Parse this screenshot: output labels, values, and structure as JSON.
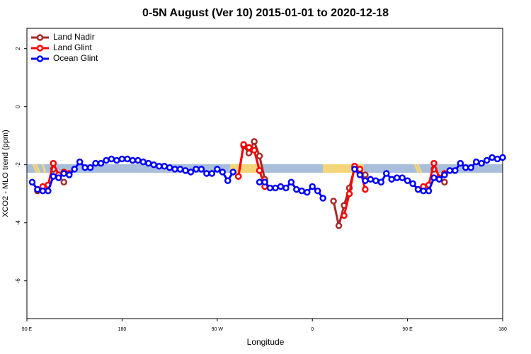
{
  "chart_data": {
    "type": "line",
    "title": "0-5N August (Ver 10)   2015-01-01 to 2020-12-18",
    "x_label": "Longitude",
    "y_label": "XCO2 - MLO trend (ppm)",
    "xlim": [
      90,
      540
    ],
    "ylim": [
      -7.3,
      2.7
    ],
    "xticks": [
      {
        "value": 90,
        "label": "90 E"
      },
      {
        "value": 180,
        "label": "180"
      },
      {
        "value": 270,
        "label": "90 W"
      },
      {
        "value": 360,
        "label": "0"
      },
      {
        "value": 450,
        "label": "90 E"
      },
      {
        "value": 540,
        "label": "180"
      }
    ],
    "yticks": [
      2,
      0,
      -2,
      -4,
      -6
    ],
    "legend": "top-left",
    "x": [
      95,
      100,
      105,
      110,
      115,
      120,
      125,
      130,
      135,
      140,
      145,
      150,
      155,
      160,
      165,
      170,
      175,
      180,
      185,
      190,
      195,
      200,
      205,
      210,
      215,
      220,
      225,
      230,
      235,
      240,
      245,
      250,
      255,
      260,
      265,
      270,
      275,
      280,
      285,
      290,
      295,
      300,
      305,
      310,
      315,
      320,
      325,
      330,
      335,
      340,
      345,
      350,
      355,
      360,
      365,
      370,
      375,
      380,
      385,
      390,
      395,
      400,
      405,
      410,
      415,
      420,
      425,
      430,
      435,
      440,
      445,
      450,
      455,
      460,
      465,
      470,
      475,
      480,
      485,
      490,
      495,
      500,
      505,
      510,
      515,
      520,
      525,
      530,
      535,
      540
    ],
    "series": [
      {
        "name": "Land Nadir",
        "color": "#a52a2a",
        "values": [
          null,
          -2.9,
          null,
          null,
          -2.15,
          null,
          -2.6,
          null,
          null,
          null,
          null,
          null,
          null,
          null,
          null,
          null,
          null,
          null,
          null,
          null,
          null,
          null,
          null,
          null,
          null,
          null,
          null,
          null,
          null,
          null,
          null,
          null,
          null,
          null,
          null,
          null,
          null,
          null,
          null,
          -2.4,
          -1.35,
          -1.6,
          -1.2,
          -1.7,
          -2.5,
          null,
          null,
          null,
          null,
          null,
          null,
          null,
          null,
          null,
          null,
          null,
          null,
          -3.25,
          -4.1,
          -3.4,
          -2.8,
          -2.1,
          -2.3,
          -2.35,
          null,
          null,
          null,
          null,
          null,
          null,
          null,
          null,
          null,
          -2.85,
          null,
          null,
          -2.15,
          null,
          -2.6,
          null,
          null,
          null,
          null,
          null,
          null,
          null,
          null,
          null,
          null,
          null
        ]
      },
      {
        "name": "Land Glint",
        "color": "#ff0000",
        "values": [
          null,
          null,
          -2.75,
          -2.7,
          -1.95,
          -2.35,
          -2.25,
          -2.3,
          null,
          null,
          null,
          null,
          null,
          null,
          null,
          null,
          null,
          null,
          null,
          null,
          null,
          null,
          null,
          null,
          null,
          null,
          null,
          null,
          null,
          null,
          null,
          null,
          null,
          null,
          null,
          null,
          null,
          null,
          null,
          -2.4,
          -1.3,
          -1.4,
          -1.5,
          -2.2,
          -2.75,
          null,
          null,
          null,
          null,
          null,
          null,
          null,
          null,
          null,
          null,
          null,
          null,
          null,
          null,
          -3.75,
          -3.0,
          -2.05,
          -2.15,
          -2.85,
          null,
          null,
          null,
          null,
          null,
          null,
          null,
          null,
          null,
          null,
          -2.75,
          -2.7,
          -1.95,
          -2.45,
          -2.3,
          null,
          null,
          null,
          null,
          null,
          null,
          null,
          null,
          null,
          null,
          null
        ]
      },
      {
        "name": "Ocean Glint",
        "color": "#0000ff",
        "values": [
          -2.6,
          -2.85,
          -2.9,
          -2.9,
          -2.4,
          -2.45,
          -2.3,
          -2.35,
          -2.15,
          -1.9,
          -2.1,
          -2.1,
          -1.95,
          -1.95,
          -1.85,
          -1.8,
          -1.85,
          -1.8,
          -1.8,
          -1.85,
          -1.85,
          -1.9,
          -1.95,
          -2.0,
          -2.05,
          -2.05,
          -2.1,
          -2.15,
          -2.15,
          -2.2,
          -2.25,
          -2.15,
          -2.15,
          -2.3,
          -2.3,
          -2.15,
          -2.25,
          -2.55,
          -2.25,
          null,
          null,
          null,
          null,
          -2.6,
          -2.6,
          -2.8,
          -2.8,
          -2.75,
          -2.8,
          -2.6,
          -2.85,
          -2.9,
          -2.95,
          -2.75,
          -2.9,
          -3.15,
          null,
          null,
          null,
          null,
          null,
          -2.15,
          -2.35,
          -2.55,
          -2.5,
          -2.55,
          -2.6,
          -2.3,
          -2.5,
          -2.45,
          -2.45,
          -2.55,
          -2.65,
          -2.85,
          -2.9,
          -2.9,
          -2.45,
          -2.5,
          -2.35,
          -2.2,
          -2.2,
          -1.95,
          -2.1,
          -2.1,
          -1.9,
          -1.95,
          -1.85,
          -1.75,
          -1.8,
          -1.75
        ]
      }
    ]
  }
}
